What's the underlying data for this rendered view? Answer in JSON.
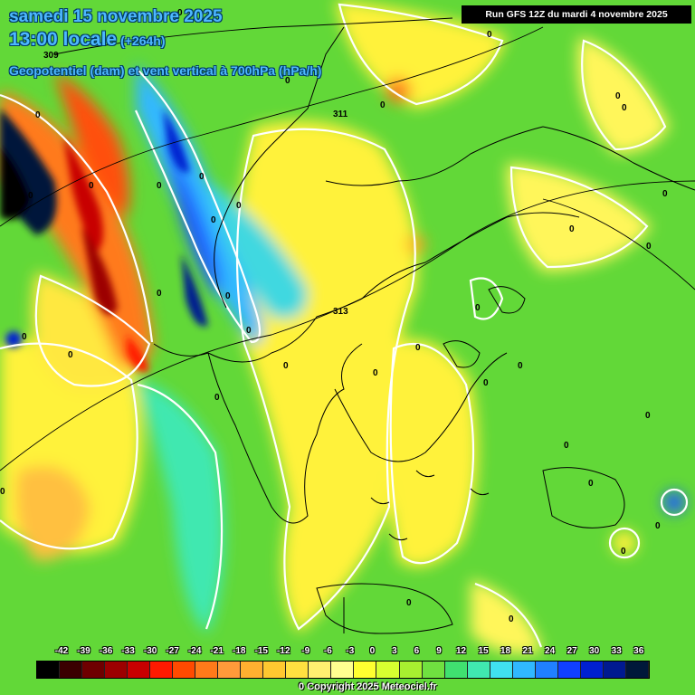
{
  "header": {
    "date": "samedi 15 novembre 2025",
    "time": "13:00 locale",
    "offset": "(+264h)",
    "subtitle": "Geopotentiel (dam) et vent vertical à 700hPa (hPa/h)"
  },
  "run_info": "Run GFS 12Z du mardi 4 novembre 2025",
  "contour_labels": {
    "geopotential": [
      "309",
      "311",
      "313"
    ],
    "vertical_wind_zero": "0"
  },
  "legend": {
    "ticks": [
      "-42",
      "-39",
      "-36",
      "-33",
      "-30",
      "-27",
      "-24",
      "-21",
      "-18",
      "-15",
      "-12",
      "-9",
      "-6",
      "-3",
      "0",
      "3",
      "6",
      "9",
      "12",
      "15",
      "18",
      "21",
      "24",
      "27",
      "30",
      "33",
      "36"
    ],
    "colors": [
      "#000000",
      "#3a0000",
      "#6e0000",
      "#9c0000",
      "#c80000",
      "#ff1a00",
      "#ff4a00",
      "#ff7a1a",
      "#ff9a3a",
      "#ffb030",
      "#ffc830",
      "#ffe040",
      "#fff070",
      "#ffff90",
      "#ffff30",
      "#d8ff30",
      "#a8f030",
      "#70e040",
      "#40e070",
      "#40e8b0",
      "#40e0f0",
      "#30b8ff",
      "#2080ff",
      "#1040ff",
      "#0020d0",
      "#001a90",
      "#00183a"
    ]
  },
  "copyright": "Copyright 2025 Meteociel.fr",
  "legend_zero_note": "0"
}
